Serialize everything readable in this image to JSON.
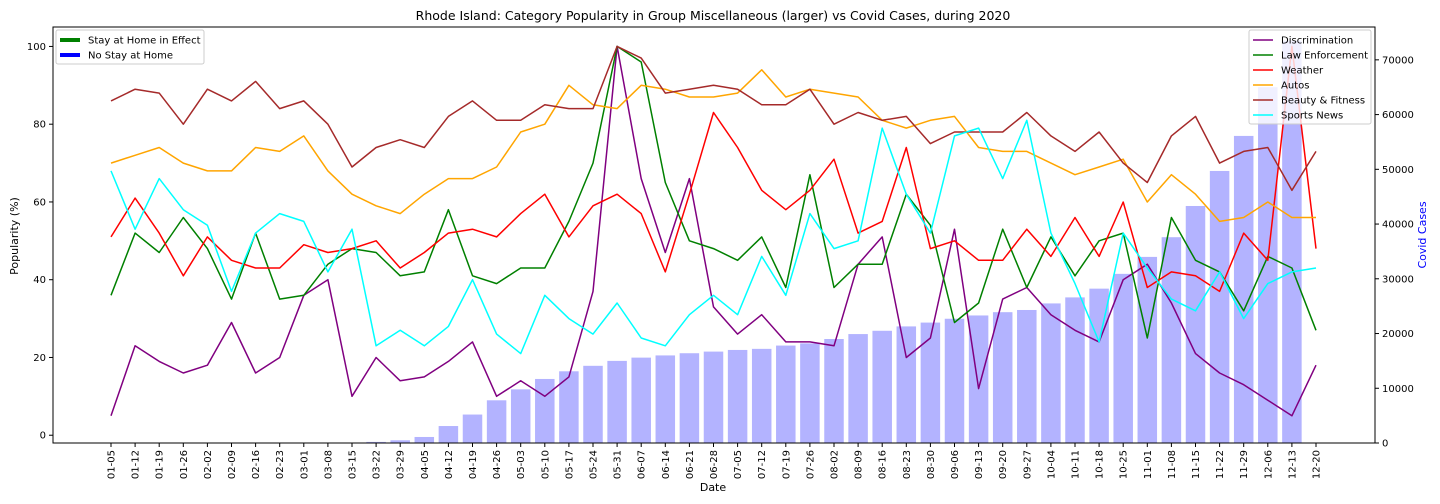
{
  "chart_data": {
    "type": "line+bar",
    "title": "Rhode Island: Category Popularity in Group Miscellaneous (larger) vs Covid Cases, during 2020",
    "xlabel": "Date",
    "ylabel": "Popularity (%)",
    "y2label": "Covid Cases",
    "ylim": [
      -2,
      105
    ],
    "y2lim": [
      0,
      76000
    ],
    "yticks": [
      0,
      20,
      40,
      60,
      80,
      100
    ],
    "y2ticks": [
      0,
      10000,
      20000,
      30000,
      40000,
      50000,
      60000,
      70000
    ],
    "grid": false,
    "legend_left_placement": "top-left",
    "legend_right_placement": "top-right",
    "categories": [
      "01-05",
      "01-12",
      "01-19",
      "01-26",
      "02-02",
      "02-09",
      "02-16",
      "02-23",
      "03-01",
      "03-08",
      "03-15",
      "03-22",
      "03-29",
      "04-05",
      "04-12",
      "04-19",
      "04-26",
      "05-03",
      "05-10",
      "05-17",
      "05-24",
      "05-31",
      "06-07",
      "06-14",
      "06-21",
      "06-28",
      "07-05",
      "07-12",
      "07-19",
      "07-26",
      "08-02",
      "08-09",
      "08-16",
      "08-23",
      "08-30",
      "09-06",
      "09-13",
      "09-20",
      "09-27",
      "10-04",
      "10-11",
      "10-18",
      "10-25",
      "11-01",
      "11-08",
      "11-15",
      "11-22",
      "11-29",
      "12-06",
      "12-13",
      "12-20"
    ],
    "stay_at_home_legend": [
      {
        "name": "Stay at Home in Effect",
        "color": "#008000"
      },
      {
        "name": "No Stay at Home",
        "color": "#0000ff"
      }
    ],
    "bars": {
      "name": "Covid Cases",
      "color": "#8080ff",
      "values": [
        0,
        0,
        0,
        0,
        0,
        0,
        0,
        0,
        0,
        0,
        0,
        200,
        500,
        1100,
        3100,
        5200,
        7800,
        9800,
        11700,
        13100,
        14100,
        15000,
        15600,
        16000,
        16400,
        16700,
        17000,
        17200,
        17800,
        18200,
        19000,
        19900,
        20500,
        21300,
        22000,
        22700,
        23300,
        23900,
        24300,
        25500,
        26600,
        28200,
        30900,
        34000,
        37600,
        43300,
        49700,
        56100,
        65000,
        73500,
        0
      ]
    },
    "series": [
      {
        "name": "Discrimination",
        "color": "#800080",
        "values": [
          5,
          23,
          19,
          16,
          18,
          29,
          16,
          20,
          36,
          40,
          10,
          20,
          14,
          15,
          19,
          24,
          10,
          14,
          10,
          15,
          37,
          100,
          66,
          47,
          66,
          33,
          26,
          31,
          24,
          24,
          23,
          44,
          51,
          20,
          25,
          53,
          12,
          35,
          38,
          31,
          27,
          24,
          40,
          44,
          34,
          21,
          16,
          13,
          9,
          5,
          18
        ]
      },
      {
        "name": "Law Enforcement",
        "color": "#008000",
        "values": [
          36,
          52,
          47,
          56,
          48,
          35,
          52,
          35,
          36,
          44,
          48,
          47,
          41,
          42,
          58,
          41,
          39,
          43,
          43,
          55,
          70,
          100,
          96,
          65,
          50,
          48,
          45,
          51,
          38,
          67,
          38,
          44,
          44,
          62,
          54,
          29,
          34,
          53,
          38,
          51,
          41,
          50,
          52,
          25,
          56,
          45,
          42,
          32,
          46,
          43,
          27
        ]
      },
      {
        "name": "Weather",
        "color": "#ff0000",
        "values": [
          51,
          61,
          52,
          41,
          51,
          45,
          43,
          43,
          49,
          47,
          48,
          50,
          43,
          47,
          52,
          53,
          51,
          57,
          62,
          51,
          59,
          62,
          57,
          42,
          62,
          83,
          74,
          63,
          58,
          63,
          71,
          52,
          55,
          74,
          48,
          50,
          45,
          45,
          53,
          46,
          56,
          46,
          60,
          38,
          42,
          41,
          37,
          52,
          45,
          100,
          48
        ]
      },
      {
        "name": "Autos",
        "color": "#ffa500",
        "values": [
          70,
          72,
          74,
          70,
          68,
          68,
          74,
          73,
          77,
          68,
          62,
          59,
          57,
          62,
          66,
          66,
          69,
          78,
          80,
          90,
          85,
          84,
          90,
          89,
          87,
          87,
          88,
          94,
          87,
          89,
          88,
          87,
          81,
          79,
          81,
          82,
          74,
          73,
          73,
          70,
          67,
          69,
          71,
          60,
          67,
          62,
          55,
          56,
          60,
          56,
          56
        ]
      },
      {
        "name": "Beauty & Fitness",
        "color": "#a52a2a",
        "values": [
          86,
          89,
          88,
          80,
          89,
          86,
          91,
          84,
          86,
          80,
          69,
          74,
          76,
          74,
          82,
          86,
          81,
          81,
          85,
          84,
          84,
          100,
          97,
          88,
          89,
          90,
          89,
          85,
          85,
          89,
          80,
          83,
          81,
          82,
          75,
          78,
          78,
          78,
          83,
          77,
          73,
          78,
          70,
          65,
          77,
          82,
          70,
          73,
          74,
          63,
          73
        ]
      },
      {
        "name": "Sports News",
        "color": "#00ffff",
        "values": [
          68,
          53,
          66,
          58,
          54,
          37,
          52,
          57,
          55,
          42,
          53,
          23,
          27,
          23,
          28,
          40,
          26,
          21,
          36,
          30,
          26,
          34,
          25,
          23,
          31,
          36,
          31,
          46,
          36,
          57,
          48,
          50,
          79,
          62,
          52,
          77,
          79,
          66,
          81,
          52,
          39,
          24,
          52,
          43,
          35,
          32,
          42,
          30,
          39,
          42,
          43
        ]
      }
    ]
  }
}
